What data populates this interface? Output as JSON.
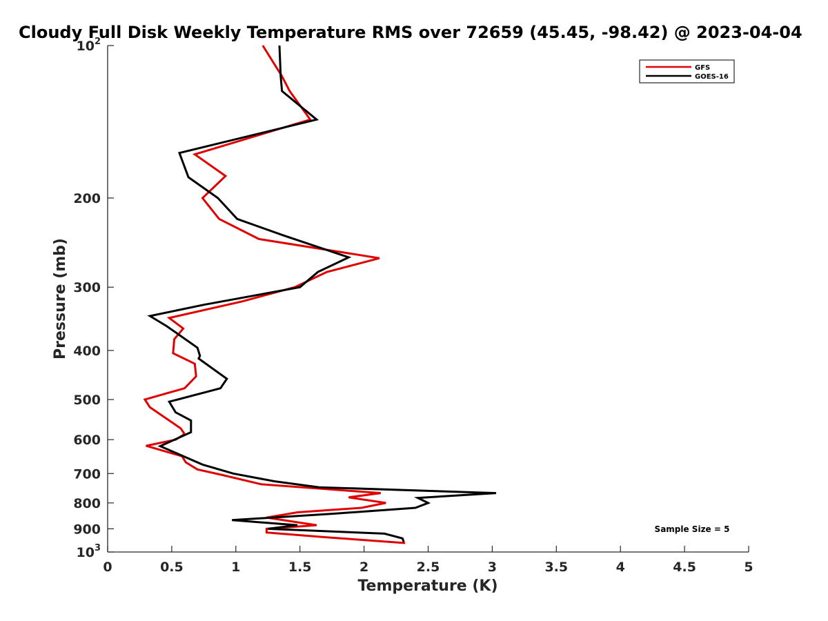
{
  "chart_data": {
    "type": "line",
    "title": "Cloudy Full Disk Weekly Temperature RMS over 72659 (45.45, -98.42) @ 2023-04-04",
    "xlabel": "Temperature (K)",
    "ylabel": "Pressure (mb)",
    "xlim": [
      0,
      5
    ],
    "ylim": [
      100,
      1000
    ],
    "y_scale": "log",
    "y_reversed": true,
    "grid": false,
    "legend_position": "top-right",
    "x_ticks": [
      "0",
      "0.5",
      "1",
      "1.5",
      "2",
      "2.5",
      "3",
      "3.5",
      "4",
      "4.5",
      "5"
    ],
    "y_ticks": [
      {
        "value": 100,
        "base": "10",
        "exp": "2"
      },
      {
        "value": 200,
        "label": "200"
      },
      {
        "value": 300,
        "label": "300"
      },
      {
        "value": 400,
        "label": "400"
      },
      {
        "value": 500,
        "label": "500"
      },
      {
        "value": 600,
        "label": "600"
      },
      {
        "value": 700,
        "label": "700"
      },
      {
        "value": 800,
        "label": "800"
      },
      {
        "value": 900,
        "label": "900"
      },
      {
        "value": 1000,
        "base": "10",
        "exp": "3"
      }
    ],
    "annotation": "Sample Size = 5",
    "series": [
      {
        "name": "GFS",
        "color": "#e00000",
        "points": [
          [
            1.21,
            100
          ],
          [
            1.36,
            115
          ],
          [
            1.42,
            123
          ],
          [
            1.58,
            140
          ],
          [
            0.68,
            164
          ],
          [
            0.92,
            181
          ],
          [
            0.74,
            200
          ],
          [
            0.87,
            220
          ],
          [
            1.18,
            241
          ],
          [
            2.12,
            263
          ],
          [
            1.71,
            280
          ],
          [
            1.46,
            300
          ],
          [
            1.05,
            320
          ],
          [
            0.48,
            345
          ],
          [
            0.59,
            362
          ],
          [
            0.52,
            380
          ],
          [
            0.51,
            405
          ],
          [
            0.68,
            425
          ],
          [
            0.69,
            450
          ],
          [
            0.6,
            475
          ],
          [
            0.29,
            500
          ],
          [
            0.33,
            518
          ],
          [
            0.48,
            550
          ],
          [
            0.57,
            570
          ],
          [
            0.6,
            585
          ],
          [
            0.53,
            600
          ],
          [
            0.3,
            617
          ],
          [
            0.58,
            647
          ],
          [
            0.61,
            665
          ],
          [
            0.7,
            687
          ],
          [
            0.9,
            705
          ],
          [
            1.2,
            735
          ],
          [
            2.13,
            765
          ],
          [
            1.88,
            780
          ],
          [
            2.17,
            800
          ],
          [
            1.98,
            818
          ],
          [
            1.48,
            835
          ],
          [
            1.24,
            855
          ],
          [
            1.63,
            885
          ],
          [
            1.24,
            900
          ],
          [
            1.24,
            915
          ],
          [
            1.7,
            935
          ],
          [
            2.32,
            960
          ]
        ]
      },
      {
        "name": "GOES-16",
        "color": "#000000",
        "points": [
          [
            1.34,
            100
          ],
          [
            1.35,
            115
          ],
          [
            1.36,
            123
          ],
          [
            1.63,
            140
          ],
          [
            0.56,
            163
          ],
          [
            0.63,
            182
          ],
          [
            0.86,
            200
          ],
          [
            1.01,
            220
          ],
          [
            1.37,
            237
          ],
          [
            1.88,
            262
          ],
          [
            1.64,
            280
          ],
          [
            1.5,
            300
          ],
          [
            0.75,
            325
          ],
          [
            0.33,
            342
          ],
          [
            0.46,
            358
          ],
          [
            0.7,
            395
          ],
          [
            0.72,
            410
          ],
          [
            0.71,
            415
          ],
          [
            0.93,
            455
          ],
          [
            0.88,
            475
          ],
          [
            0.48,
            505
          ],
          [
            0.53,
            530
          ],
          [
            0.65,
            550
          ],
          [
            0.65,
            580
          ],
          [
            0.41,
            618
          ],
          [
            0.61,
            650
          ],
          [
            0.74,
            672
          ],
          [
            0.98,
            700
          ],
          [
            1.3,
            725
          ],
          [
            1.65,
            745
          ],
          [
            3.03,
            765
          ],
          [
            2.42,
            782
          ],
          [
            2.5,
            800
          ],
          [
            2.4,
            818
          ],
          [
            1.77,
            840
          ],
          [
            0.97,
            865
          ],
          [
            1.48,
            885
          ],
          [
            1.25,
            900
          ],
          [
            2.16,
            920
          ],
          [
            2.3,
            940
          ],
          [
            2.31,
            955
          ]
        ]
      }
    ]
  }
}
